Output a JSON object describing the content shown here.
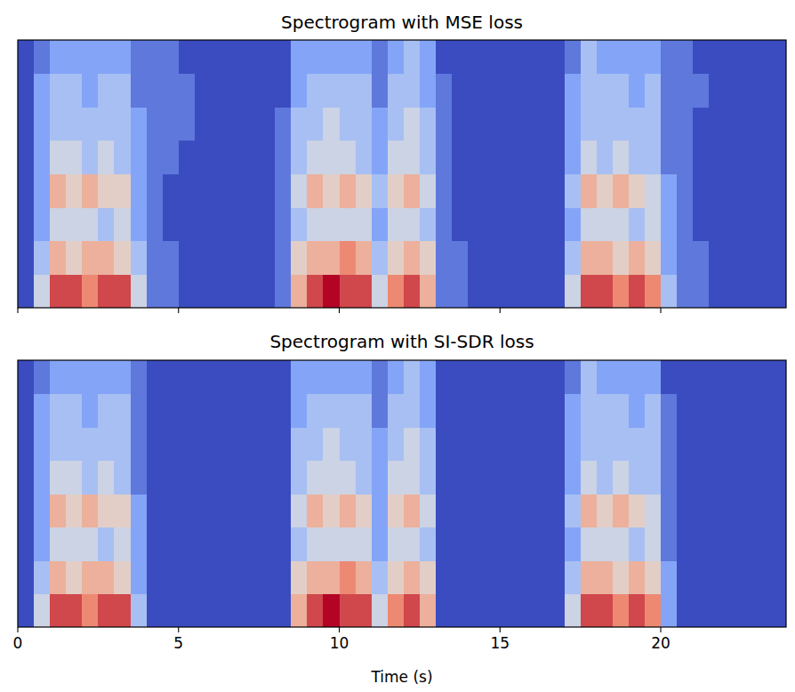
{
  "chart_data": [
    {
      "type": "heatmap",
      "title": "Spectrogram with MSE loss",
      "xlim": [
        0,
        23.9
      ],
      "xticks": [
        0,
        5,
        10,
        15,
        20
      ],
      "ylim": [
        0,
        8
      ],
      "zlim": [
        0,
        9
      ],
      "grid": false,
      "tick_labels": false,
      "xbins": [
        0,
        0.5,
        1,
        1.5,
        2,
        2.5,
        3,
        3.5,
        4,
        4.5,
        5,
        5.5,
        6,
        6.5,
        7,
        7.5,
        8,
        8.5,
        9,
        9.5,
        10,
        10.5,
        11,
        11.5,
        12,
        12.5,
        13,
        13.5,
        14,
        14.5,
        15,
        15.5,
        16,
        16.5,
        17,
        17.5,
        18,
        18.5,
        19,
        19.5,
        20,
        20.5,
        21,
        21.5,
        22,
        22.5,
        23,
        23.5,
        24
      ],
      "cells": [
        [
          0,
          4,
          8,
          8,
          7,
          8,
          8,
          4,
          1,
          1,
          0,
          0,
          0,
          0,
          0,
          0,
          1,
          6,
          8,
          9,
          8,
          8,
          4,
          7,
          8,
          6,
          1,
          1,
          0,
          0,
          0,
          0,
          0,
          0,
          4,
          8,
          8,
          7,
          8,
          7,
          3,
          1,
          1,
          0,
          0,
          0,
          0,
          0
        ],
        [
          0,
          3,
          6,
          5,
          6,
          6,
          5,
          3,
          1,
          1,
          0,
          0,
          0,
          0,
          0,
          0,
          1,
          5,
          6,
          6,
          7,
          6,
          3,
          5,
          6,
          5,
          1,
          1,
          0,
          0,
          0,
          0,
          0,
          0,
          3,
          6,
          6,
          5,
          6,
          5,
          2,
          1,
          1,
          0,
          0,
          0,
          0,
          0
        ],
        [
          0,
          2,
          4,
          4,
          4,
          3,
          4,
          2,
          1,
          0,
          0,
          0,
          0,
          0,
          0,
          0,
          1,
          3,
          4,
          4,
          4,
          4,
          2,
          4,
          4,
          3,
          1,
          0,
          0,
          0,
          0,
          0,
          0,
          0,
          2,
          4,
          4,
          4,
          3,
          4,
          2,
          1,
          0,
          0,
          0,
          0,
          0,
          0
        ],
        [
          0,
          2,
          6,
          5,
          6,
          5,
          5,
          2,
          1,
          0,
          0,
          0,
          0,
          0,
          0,
          0,
          1,
          4,
          6,
          5,
          6,
          5,
          3,
          5,
          6,
          4,
          1,
          0,
          0,
          0,
          0,
          0,
          0,
          0,
          3,
          6,
          5,
          6,
          5,
          4,
          2,
          1,
          0,
          0,
          0,
          0,
          0,
          0
        ],
        [
          0,
          2,
          4,
          4,
          3,
          4,
          3,
          2,
          1,
          1,
          0,
          0,
          0,
          0,
          0,
          0,
          1,
          3,
          4,
          4,
          4,
          3,
          2,
          4,
          4,
          3,
          1,
          0,
          0,
          0,
          0,
          0,
          0,
          0,
          2,
          4,
          3,
          4,
          3,
          3,
          1,
          1,
          0,
          0,
          0,
          0,
          0,
          0
        ],
        [
          0,
          2,
          3,
          3,
          3,
          3,
          3,
          2,
          1,
          1,
          1,
          0,
          0,
          0,
          0,
          0,
          1,
          3,
          3,
          4,
          3,
          3,
          2,
          3,
          4,
          3,
          1,
          0,
          0,
          0,
          0,
          0,
          0,
          0,
          2,
          3,
          3,
          3,
          3,
          3,
          1,
          1,
          0,
          0,
          0,
          0,
          0,
          0
        ],
        [
          0,
          2,
          3,
          3,
          2,
          3,
          3,
          1,
          1,
          1,
          1,
          0,
          0,
          0,
          0,
          0,
          0,
          2,
          3,
          3,
          3,
          3,
          1,
          3,
          3,
          2,
          1,
          0,
          0,
          0,
          0,
          0,
          0,
          0,
          2,
          3,
          3,
          3,
          2,
          3,
          1,
          1,
          1,
          0,
          0,
          0,
          0,
          0
        ],
        [
          0,
          1,
          2,
          2,
          2,
          2,
          2,
          1,
          1,
          1,
          0,
          0,
          0,
          0,
          0,
          0,
          0,
          2,
          2,
          2,
          2,
          2,
          1,
          2,
          3,
          2,
          0,
          0,
          0,
          0,
          0,
          0,
          0,
          0,
          1,
          3,
          2,
          2,
          2,
          2,
          1,
          1,
          0,
          0,
          0,
          0,
          0,
          0
        ]
      ]
    },
    {
      "type": "heatmap",
      "title": "Spectrogram with SI-SDR loss",
      "xlabel": "Time (s)",
      "xlim": [
        0,
        23.9
      ],
      "xticks": [
        0,
        5,
        10,
        15,
        20
      ],
      "ylim": [
        0,
        8
      ],
      "zlim": [
        0,
        9
      ],
      "grid": false,
      "tick_labels": "x",
      "xbins": [
        0,
        0.5,
        1,
        1.5,
        2,
        2.5,
        3,
        3.5,
        4,
        4.5,
        5,
        5.5,
        6,
        6.5,
        7,
        7.5,
        8,
        8.5,
        9,
        9.5,
        10,
        10.5,
        11,
        11.5,
        12,
        12.5,
        13,
        13.5,
        14,
        14.5,
        15,
        15.5,
        16,
        16.5,
        17,
        17.5,
        18,
        18.5,
        19,
        19.5,
        20,
        20.5,
        21,
        21.5,
        22,
        22.5,
        23,
        23.5,
        24
      ],
      "cells": [
        [
          0,
          4,
          8,
          8,
          7,
          8,
          8,
          3,
          0,
          0,
          0,
          0,
          0,
          0,
          0,
          0,
          0,
          6,
          8,
          9,
          8,
          8,
          4,
          7,
          8,
          6,
          0,
          0,
          0,
          0,
          0,
          0,
          0,
          0,
          4,
          8,
          8,
          7,
          8,
          7,
          2,
          0,
          0,
          0,
          0,
          0,
          0,
          0
        ],
        [
          0,
          3,
          6,
          5,
          6,
          6,
          5,
          2,
          0,
          0,
          0,
          0,
          0,
          0,
          0,
          0,
          0,
          5,
          6,
          6,
          7,
          6,
          3,
          5,
          6,
          5,
          0,
          0,
          0,
          0,
          0,
          0,
          0,
          0,
          3,
          6,
          6,
          5,
          6,
          5,
          2,
          0,
          0,
          0,
          0,
          0,
          0,
          0
        ],
        [
          0,
          2,
          4,
          4,
          4,
          3,
          4,
          2,
          0,
          0,
          0,
          0,
          0,
          0,
          0,
          0,
          0,
          3,
          4,
          4,
          4,
          4,
          2,
          4,
          4,
          3,
          0,
          0,
          0,
          0,
          0,
          0,
          0,
          0,
          2,
          4,
          4,
          4,
          3,
          4,
          1,
          0,
          0,
          0,
          0,
          0,
          0,
          0
        ],
        [
          0,
          2,
          6,
          5,
          6,
          5,
          5,
          2,
          0,
          0,
          0,
          0,
          0,
          0,
          0,
          0,
          0,
          4,
          6,
          5,
          6,
          5,
          2,
          5,
          6,
          4,
          0,
          0,
          0,
          0,
          0,
          0,
          0,
          0,
          3,
          6,
          5,
          6,
          5,
          4,
          1,
          0,
          0,
          0,
          0,
          0,
          0,
          0
        ],
        [
          0,
          2,
          4,
          4,
          3,
          4,
          3,
          1,
          0,
          0,
          0,
          0,
          0,
          0,
          0,
          0,
          0,
          3,
          4,
          4,
          4,
          3,
          2,
          4,
          4,
          3,
          0,
          0,
          0,
          0,
          0,
          0,
          0,
          0,
          2,
          4,
          3,
          4,
          3,
          3,
          1,
          0,
          0,
          0,
          0,
          0,
          0,
          0
        ],
        [
          0,
          2,
          3,
          3,
          3,
          3,
          3,
          1,
          0,
          0,
          0,
          0,
          0,
          0,
          0,
          0,
          0,
          3,
          3,
          4,
          3,
          3,
          2,
          3,
          4,
          3,
          0,
          0,
          0,
          0,
          0,
          0,
          0,
          0,
          2,
          3,
          3,
          3,
          3,
          3,
          1,
          0,
          0,
          0,
          0,
          0,
          0,
          0
        ],
        [
          0,
          2,
          3,
          3,
          2,
          3,
          3,
          1,
          0,
          0,
          0,
          0,
          0,
          0,
          0,
          0,
          0,
          2,
          3,
          3,
          3,
          3,
          1,
          3,
          3,
          2,
          0,
          0,
          0,
          0,
          0,
          0,
          0,
          0,
          2,
          3,
          3,
          3,
          2,
          3,
          1,
          0,
          0,
          0,
          0,
          0,
          0,
          0
        ],
        [
          0,
          1,
          2,
          2,
          2,
          2,
          2,
          1,
          0,
          0,
          0,
          0,
          0,
          0,
          0,
          0,
          0,
          2,
          2,
          2,
          2,
          2,
          1,
          2,
          3,
          2,
          0,
          0,
          0,
          0,
          0,
          0,
          0,
          0,
          1,
          3,
          2,
          2,
          2,
          2,
          0,
          0,
          0,
          0,
          0,
          0,
          0,
          0
        ]
      ]
    }
  ]
}
